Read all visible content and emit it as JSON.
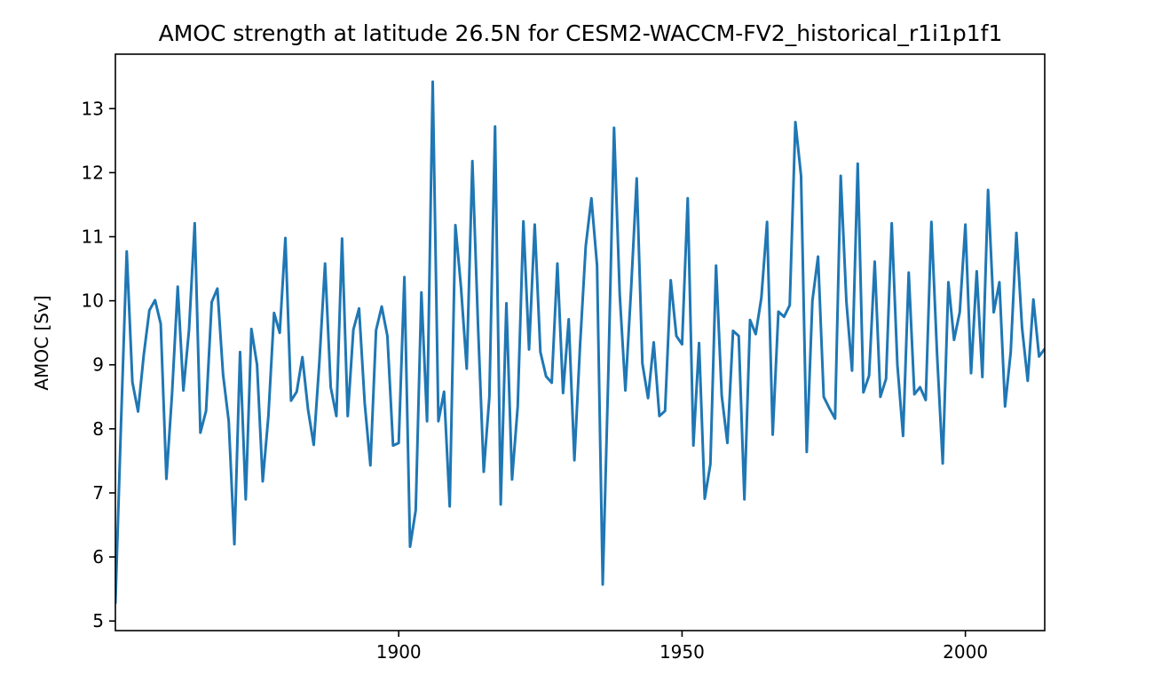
{
  "chart_data": {
    "type": "line",
    "title": "AMOC strength at latitude 26.5N for CESM2-WACCM-FV2_historical_r1i1p1f1",
    "xlabel": "",
    "ylabel": "AMOC [Sv]",
    "xlim": [
      1850,
      2014
    ],
    "ylim": [
      4.85,
      13.85
    ],
    "x_ticks": [
      1900,
      1950,
      2000
    ],
    "x_tick_labels": [
      "1900",
      "1950",
      "2000"
    ],
    "y_ticks": [
      5,
      6,
      7,
      8,
      9,
      10,
      11,
      12,
      13
    ],
    "y_tick_labels": [
      "5",
      "6",
      "7",
      "8",
      "9",
      "10",
      "11",
      "12",
      "13"
    ],
    "grid": false,
    "line_color": "#1f77b4",
    "series": [
      {
        "x_start": 1850,
        "x_step": 1,
        "values": [
          5.27,
          8.1,
          10.77,
          8.73,
          8.27,
          9.15,
          9.85,
          10.01,
          9.64,
          7.22,
          8.55,
          10.22,
          8.6,
          9.55,
          11.21,
          7.94,
          8.28,
          9.98,
          10.19,
          8.85,
          8.12,
          6.2,
          9.2,
          6.9,
          9.56,
          9.0,
          7.18,
          8.2,
          9.81,
          9.5,
          10.98,
          8.44,
          8.58,
          9.12,
          8.3,
          7.75,
          9.05,
          10.58,
          8.65,
          8.2,
          10.97,
          8.2,
          9.55,
          9.88,
          8.4,
          7.43,
          9.54,
          9.91,
          9.45,
          7.74,
          7.78,
          10.37,
          6.16,
          6.73,
          10.13,
          8.12,
          13.42,
          8.12,
          8.58,
          6.79,
          11.18,
          10.2,
          8.94,
          12.18,
          9.6,
          7.33,
          8.5,
          12.72,
          6.82,
          9.96,
          7.21,
          8.35,
          11.24,
          9.24,
          11.19,
          9.2,
          8.82,
          8.72,
          10.58,
          8.56,
          9.71,
          7.51,
          9.3,
          10.85,
          11.6,
          10.55,
          5.57,
          8.9,
          12.7,
          10.1,
          8.6,
          10.17,
          11.91,
          9.02,
          8.48,
          9.35,
          8.2,
          8.28,
          10.32,
          9.45,
          9.32,
          11.6,
          7.74,
          9.34,
          6.91,
          7.45,
          10.55,
          8.52,
          7.78,
          9.53,
          9.45,
          6.9,
          9.7,
          9.48,
          10.05,
          11.23,
          7.91,
          9.83,
          9.75,
          9.93,
          12.79,
          11.95,
          7.64,
          10.0,
          10.69,
          8.5,
          8.32,
          8.16,
          11.95,
          9.99,
          8.91,
          12.14,
          8.57,
          8.83,
          10.61,
          8.5,
          8.78,
          11.21,
          9.0,
          7.89,
          10.44,
          8.54,
          8.65,
          8.45,
          11.23,
          9.17,
          7.46,
          10.29,
          9.39,
          9.82,
          11.19,
          8.87,
          10.46,
          8.81,
          11.73,
          9.82,
          10.29,
          8.35,
          9.2,
          11.06,
          9.58,
          8.75,
          10.02,
          9.13,
          9.25
        ]
      }
    ]
  }
}
